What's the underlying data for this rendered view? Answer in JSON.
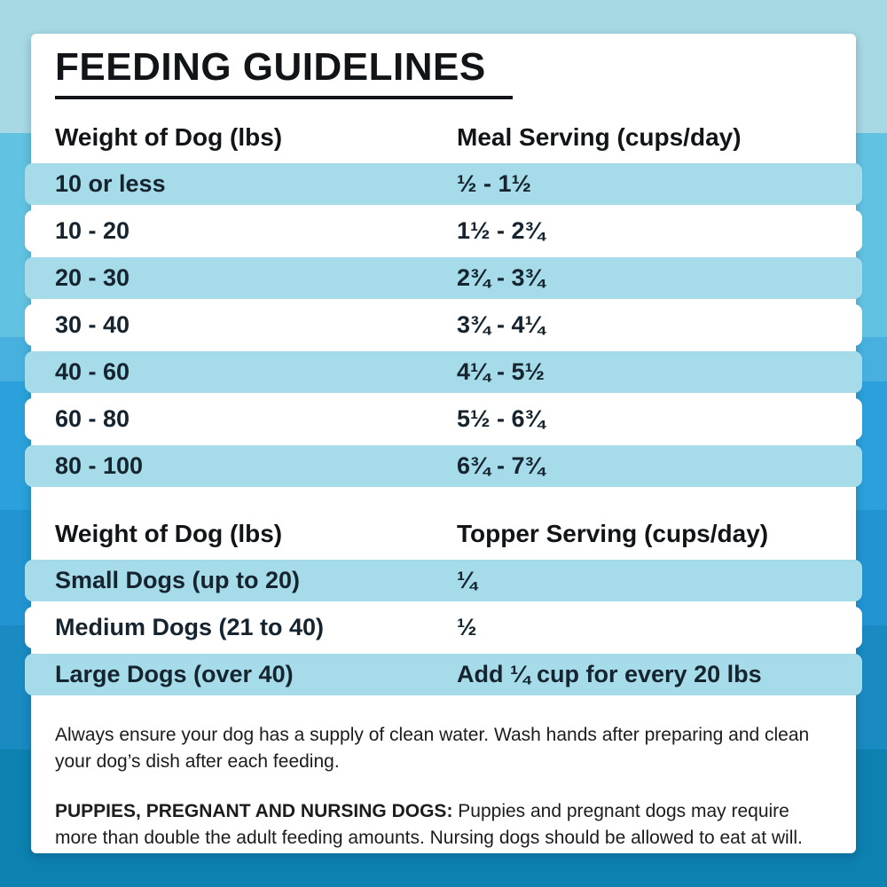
{
  "title": "FEEDING GUIDELINES",
  "meal_table": {
    "col1_header": "Weight of Dog (lbs)",
    "col2_header": "Meal Serving (cups/day)",
    "rows": [
      {
        "weight": "10 or less",
        "serving": "½ - 1½"
      },
      {
        "weight": "10 - 20",
        "serving": "1½ - 2¾"
      },
      {
        "weight": "20 - 30",
        "serving": "2¾ - 3¾"
      },
      {
        "weight": "30 - 40",
        "serving": "3¾ - 4¼"
      },
      {
        "weight": "40 - 60",
        "serving": "4¼ - 5½"
      },
      {
        "weight": "60 - 80",
        "serving": "5½ - 6¾"
      },
      {
        "weight": "80 - 100",
        "serving": "6¾ - 7¾"
      }
    ]
  },
  "topper_table": {
    "col1_header": "Weight of Dog (lbs)",
    "col2_header": "Topper Serving (cups/day)",
    "rows": [
      {
        "weight": "Small Dogs (up to 20)",
        "serving": "¼"
      },
      {
        "weight": "Medium Dogs (21 to 40)",
        "serving": "½"
      },
      {
        "weight": "Large Dogs (over 40)",
        "serving": "Add ¼ cup for every 20 lbs"
      }
    ]
  },
  "notes": {
    "water_line1": "Always ensure your dog has a supply of clean water. Wash hands after preparing and clean",
    "water_line2": "your dog’s dish after each feeding.",
    "puppies_bold": "PUPPIES, PREGNANT AND NURSING DOGS:",
    "puppies_line1_rest": " Puppies and pregnant dogs may require",
    "puppies_line2": "more than double the adult feeding amounts. Nursing dogs should be allowed to eat at will."
  },
  "colors": {
    "stripe": "#a6dcea",
    "card": "#ffffff",
    "text_dark": "#121517",
    "row_text": "#15242e",
    "background_bands": [
      "#a7d9e5",
      "#62c2e1",
      "#47b0de",
      "#2ba0da",
      "#2294d2",
      "#1a8ac2",
      "#0d81b0"
    ]
  }
}
